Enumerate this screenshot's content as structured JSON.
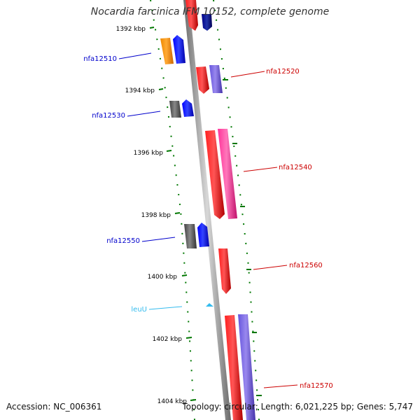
{
  "title": "Nocardia farcinica IFM 10152, complete genome",
  "footer": {
    "accession": "Accession: NC_006361",
    "stats": "Topology: circular; Length: 6,021,225 bp; Genes: 5,747"
  },
  "ruler_ticks": [
    "1392 kbp",
    "1394 kbp",
    "1396 kbp",
    "1398 kbp",
    "1400 kbp",
    "1402 kbp",
    "1404 kbp"
  ],
  "gene_labels": {
    "left": [
      "nfa12510",
      "nfa12530",
      "nfa12550",
      "leuU"
    ],
    "right": [
      "nfa12520",
      "nfa12540",
      "nfa12560",
      "nfa12570"
    ]
  },
  "colors": {
    "strand_minus_label": "#0000cc",
    "strand_plus_label": "#cc0000",
    "trna_label": "#33bbee",
    "tick": "#007700",
    "backbone": "#888888"
  }
}
